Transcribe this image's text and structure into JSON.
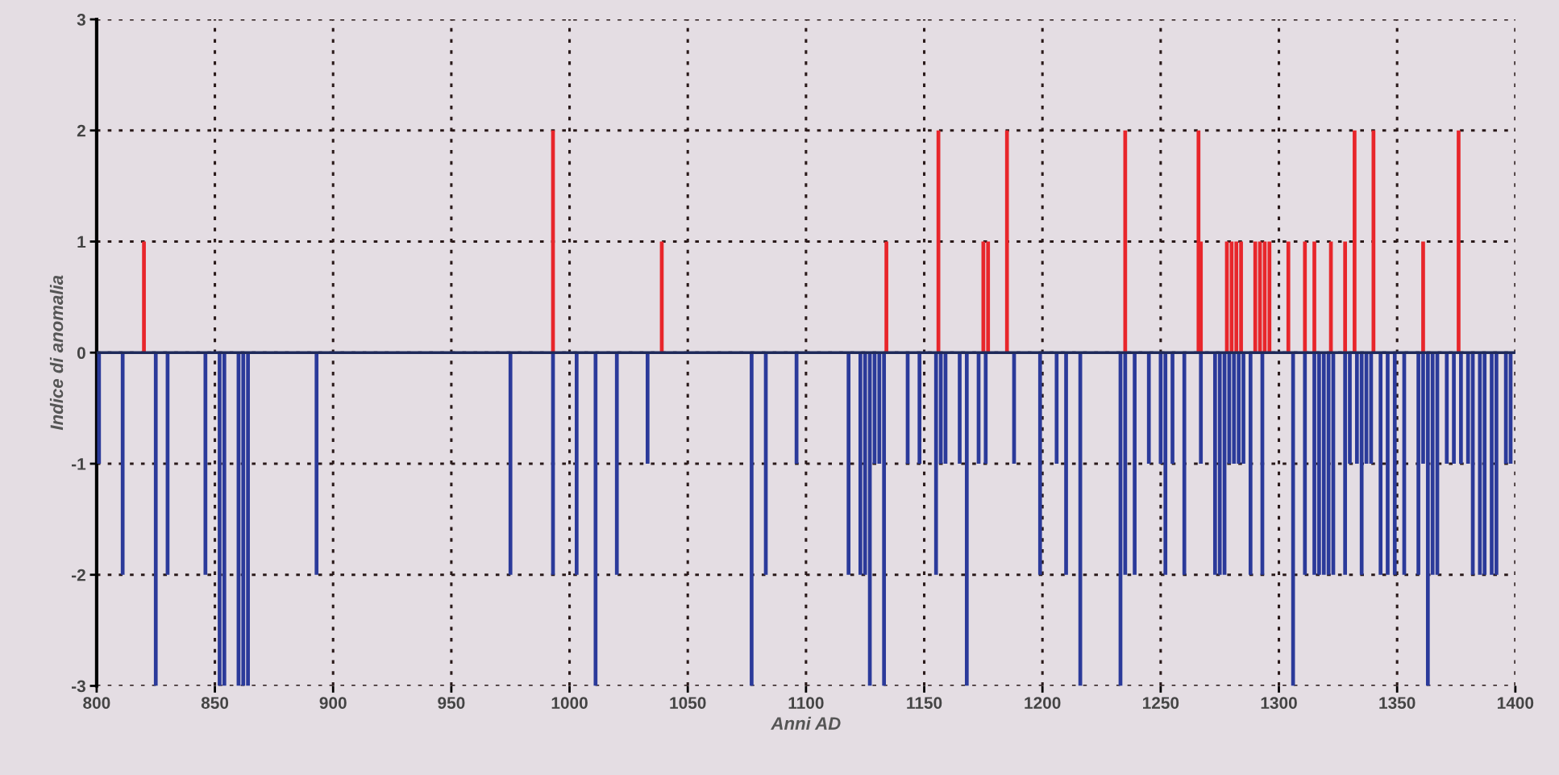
{
  "chart_data": {
    "type": "bar",
    "xlabel": "Anni AD",
    "ylabel": "Indice di anomalia",
    "xlim": [
      800,
      1400
    ],
    "xticks": [
      800,
      850,
      900,
      950,
      1000,
      1050,
      1100,
      1150,
      1200,
      1250,
      1300,
      1350,
      1400
    ],
    "ylim": [
      -3,
      3
    ],
    "yticks": [
      -3,
      -2,
      -1,
      0,
      1,
      2,
      3
    ],
    "grid": true,
    "legend": false,
    "ref_lines": [
      {
        "axis": "y",
        "value": 0,
        "color": "#1f2a5a"
      }
    ],
    "series": [
      {
        "color": "#e8262b",
        "x": [
          820,
          993,
          1039,
          1134,
          1156,
          1175,
          1177,
          1185,
          1235,
          1266,
          1267,
          1278,
          1280,
          1282,
          1284,
          1290,
          1292,
          1294,
          1296,
          1304,
          1311,
          1315,
          1322,
          1328,
          1332,
          1340,
          1361,
          1376
        ],
        "values": [
          1,
          2,
          1,
          1,
          2,
          1,
          1,
          2,
          2,
          2,
          1,
          1,
          1,
          1,
          1,
          1,
          1,
          1,
          1,
          1,
          1,
          1,
          1,
          1,
          2,
          2,
          1,
          2
        ]
      },
      {
        "color": "#2b3a9a",
        "x": [
          801,
          811,
          825,
          830,
          846,
          852,
          854,
          860,
          862,
          864,
          893,
          975,
          993,
          1003,
          1011,
          1020,
          1033,
          1077,
          1083,
          1096,
          1118,
          1123,
          1125,
          1127,
          1129,
          1131,
          1133,
          1143,
          1148,
          1155,
          1157,
          1159,
          1165,
          1168,
          1173,
          1176,
          1188,
          1199,
          1206,
          1210,
          1216,
          1233,
          1235,
          1239,
          1245,
          1250,
          1252,
          1255,
          1260,
          1267,
          1273,
          1275,
          1277,
          1279,
          1281,
          1283,
          1285,
          1288,
          1293,
          1306,
          1311,
          1315,
          1317,
          1319,
          1321,
          1323,
          1328,
          1330,
          1333,
          1335,
          1337,
          1339,
          1343,
          1346,
          1349,
          1353,
          1359,
          1361,
          1363,
          1365,
          1367,
          1371,
          1374,
          1377,
          1380,
          1382,
          1385,
          1387,
          1390,
          1392,
          1396,
          1398
        ],
        "values": [
          -1,
          -2,
          -3,
          -2,
          -2,
          -3,
          -3,
          -3,
          -3,
          -3,
          -2,
          -2,
          -2,
          -2,
          -3,
          -2,
          -1,
          -3,
          -2,
          -1,
          -2,
          -2,
          -2,
          -3,
          -1,
          -1,
          -3,
          -1,
          -1,
          -2,
          -1,
          -1,
          -1,
          -3,
          -1,
          -1,
          -1,
          -2,
          -1,
          -2,
          -3,
          -3,
          -2,
          -2,
          -1,
          -1,
          -2,
          -1,
          -2,
          -1,
          -2,
          -2,
          -2,
          -1,
          -1,
          -1,
          -1,
          -2,
          -2,
          -3,
          -2,
          -2,
          -2,
          -2,
          -2,
          -2,
          -2,
          -1,
          -1,
          -2,
          -1,
          -1,
          -2,
          -2,
          -2,
          -2,
          -2,
          -1,
          -3,
          -2,
          -2,
          -1,
          -1,
          -1,
          -1,
          -2,
          -2,
          -2,
          -2,
          -2,
          -1,
          -1
        ]
      }
    ]
  }
}
